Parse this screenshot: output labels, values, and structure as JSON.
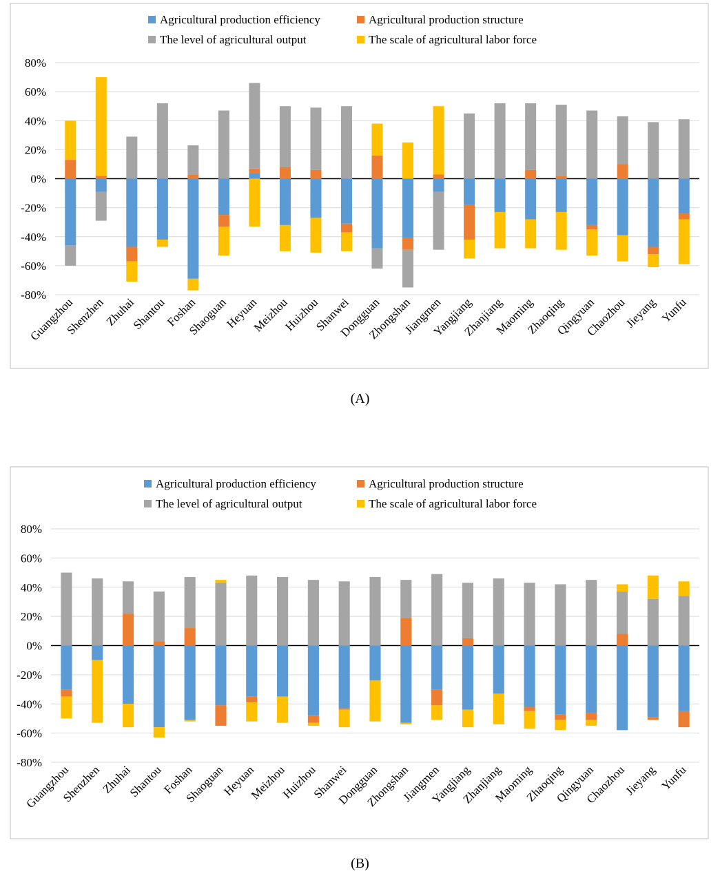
{
  "colors": {
    "efficiency": "#5B9BD5",
    "structure": "#ED7D31",
    "output": "#A5A5A5",
    "labor": "#FFC000",
    "grid": "#D9D9D9",
    "frame": "#BFBFBF"
  },
  "panels": [
    {
      "label": "(A)"
    },
    {
      "label": "(B)"
    }
  ],
  "chart_data": [
    {
      "type": "bar",
      "stacked": true,
      "title": "",
      "xlabel": "",
      "ylabel": "",
      "ylim": [
        -0.8,
        0.8
      ],
      "y_ticks": [
        0.8,
        0.6,
        0.4,
        0.2,
        0,
        -0.2,
        -0.4,
        -0.6,
        -0.8
      ],
      "y_tick_labels": [
        "80%",
        "60%",
        "40%",
        "20%",
        "0%",
        "-20%",
        "-40%",
        "-60%",
        "-80%"
      ],
      "legend_position": "top",
      "categories": [
        "Guangzhou",
        "Shenzhen",
        "Zhuhai",
        "Shantou",
        "Foshan",
        "Shaoguan",
        "Heyuan",
        "Meizhou",
        "Huizhou",
        "Shanwei",
        "Dongguan",
        "Zhongshan",
        "Jiangmen",
        "Yangjiang",
        "Zhanjiang",
        "Maoming",
        "Zhaoqing",
        "Qingyuan",
        "Chaozhou",
        "Jieyang",
        "Yunfu"
      ],
      "series": [
        {
          "key": "efficiency",
          "name": "Agricultural production efficiency",
          "values": [
            -0.46,
            -0.09,
            -0.47,
            -0.42,
            -0.69,
            -0.25,
            0.04,
            -0.32,
            -0.27,
            -0.31,
            -0.48,
            -0.41,
            -0.09,
            -0.18,
            -0.23,
            -0.28,
            -0.23,
            -0.32,
            -0.39,
            -0.47,
            -0.24
          ]
        },
        {
          "key": "structure",
          "name": "Agricultural production structure",
          "values": [
            0.13,
            0.02,
            -0.1,
            0.0,
            0.03,
            -0.08,
            0.03,
            0.08,
            0.06,
            -0.06,
            0.16,
            -0.08,
            0.03,
            -0.24,
            0.0,
            0.06,
            0.02,
            -0.03,
            0.1,
            -0.05,
            -0.04
          ]
        },
        {
          "key": "output",
          "name": "The level of agricultural output",
          "values": [
            -0.14,
            -0.2,
            0.29,
            0.52,
            0.2,
            0.47,
            0.59,
            0.42,
            0.43,
            0.5,
            -0.14,
            -0.26,
            -0.4,
            0.45,
            0.52,
            0.46,
            0.49,
            0.47,
            0.33,
            0.39,
            0.41
          ]
        },
        {
          "key": "labor",
          "name": "The scale of agricultural labor force",
          "values": [
            0.27,
            0.68,
            -0.14,
            -0.05,
            -0.08,
            -0.2,
            -0.33,
            -0.18,
            -0.24,
            -0.13,
            0.22,
            0.25,
            0.47,
            -0.13,
            -0.25,
            -0.2,
            -0.26,
            -0.18,
            -0.18,
            -0.09,
            -0.31
          ]
        }
      ]
    },
    {
      "type": "bar",
      "stacked": true,
      "title": "",
      "xlabel": "",
      "ylabel": "",
      "ylim": [
        -0.8,
        0.8
      ],
      "y_ticks": [
        0.8,
        0.6,
        0.4,
        0.2,
        0,
        -0.2,
        -0.4,
        -0.6,
        -0.8
      ],
      "y_tick_labels": [
        "80%",
        "60%",
        "40%",
        "20%",
        "0%",
        "-20%",
        "-40%",
        "-60%",
        "-80%"
      ],
      "legend_position": "top",
      "categories": [
        "Guangzhou",
        "Shenzhen",
        "Zhuhai",
        "Shantou",
        "Foshan",
        "Shaoguan",
        "Heyuan",
        "Meizhou",
        "Huizhou",
        "Shanwei",
        "Dongguan",
        "Zhongshan",
        "Jiangmen",
        "Yangjiang",
        "Zhanjiang",
        "Maoming",
        "Zhaoqing",
        "Qingyuan",
        "Chaozhou",
        "Jieyang",
        "Yunfu"
      ],
      "series": [
        {
          "key": "efficiency",
          "name": "Agricultural production efficiency",
          "values": [
            -0.3,
            -0.1,
            -0.4,
            -0.56,
            -0.51,
            -0.41,
            -0.35,
            -0.35,
            -0.48,
            -0.43,
            -0.24,
            -0.53,
            -0.3,
            -0.44,
            -0.33,
            -0.42,
            -0.47,
            -0.46,
            -0.58,
            -0.49,
            -0.45
          ]
        },
        {
          "key": "structure",
          "name": "Agricultural production structure",
          "values": [
            -0.05,
            0.0,
            0.22,
            0.03,
            0.12,
            -0.14,
            -0.04,
            0.0,
            -0.05,
            -0.01,
            0.0,
            0.19,
            -0.11,
            0.05,
            0.0,
            -0.03,
            -0.04,
            -0.05,
            0.08,
            -0.02,
            -0.11
          ]
        },
        {
          "key": "output",
          "name": "The level of agricultural output",
          "values": [
            0.5,
            0.46,
            0.22,
            0.34,
            0.35,
            0.43,
            0.48,
            0.47,
            0.45,
            0.44,
            0.47,
            0.26,
            0.49,
            0.38,
            0.46,
            0.43,
            0.42,
            0.45,
            0.29,
            0.32,
            0.34
          ]
        },
        {
          "key": "labor",
          "name": "The scale of agricultural labor force",
          "values": [
            -0.15,
            -0.43,
            -0.16,
            -0.07,
            -0.01,
            0.02,
            -0.13,
            -0.18,
            -0.02,
            -0.12,
            -0.28,
            -0.01,
            -0.1,
            -0.12,
            -0.21,
            -0.12,
            -0.07,
            -0.04,
            0.05,
            0.16,
            0.1
          ]
        }
      ]
    }
  ]
}
